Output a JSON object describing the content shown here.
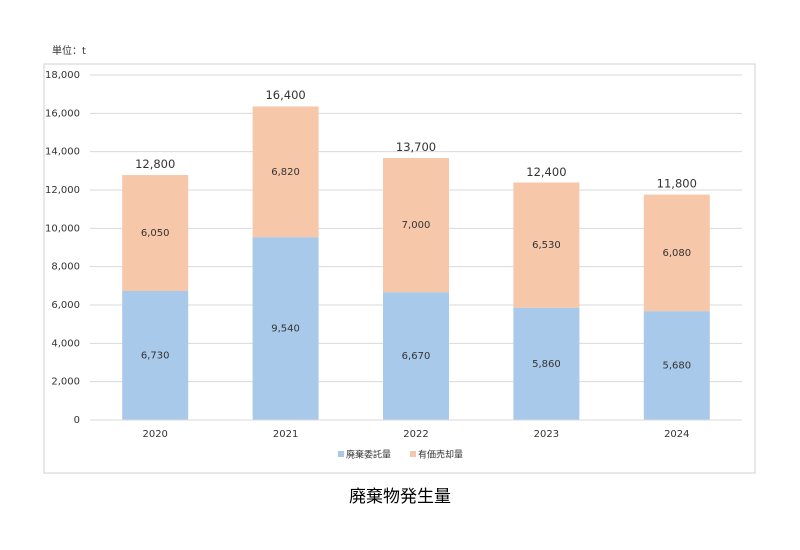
{
  "chart_data": {
    "type": "stacked_bar",
    "title": "廃棄物発生量",
    "unit_label": "単位：t",
    "categories": [
      "2020",
      "2021",
      "2022",
      "2023",
      "2024"
    ],
    "series": [
      {
        "name": "廃棄委託量",
        "color": "#a9c9ea",
        "values": [
          6730,
          9540,
          6670,
          5860,
          5680
        ],
        "value_labels": [
          "6,730",
          "9,540",
          "6,670",
          "5,860",
          "5,680"
        ]
      },
      {
        "name": "有価売却量",
        "color": "#f7c7aa",
        "values": [
          6050,
          6820,
          7000,
          6530,
          6080
        ],
        "value_labels": [
          "6,050",
          "6,820",
          "7,000",
          "6,530",
          "6,080"
        ]
      }
    ],
    "totals": [
      12800,
      16400,
      13700,
      12400,
      11800
    ],
    "total_labels": [
      "12,800",
      "16,400",
      "13,700",
      "12,400",
      "11,800"
    ],
    "ylim": [
      0,
      18000
    ],
    "yticks": [
      0,
      {
        "value": 2000,
        "label": "2,000"
      },
      {
        "value": 4000,
        "label": "4,000"
      },
      {
        "value": 6000,
        "label": "6,000"
      },
      {
        "value": 8000,
        "label": "8,000"
      },
      {
        "value": 10000,
        "label": "10,000"
      },
      {
        "value": 12000,
        "label": "12,000"
      },
      {
        "value": 14000,
        "label": "14,000"
      },
      {
        "value": 16000,
        "label": "16,000"
      },
      {
        "value": 18000,
        "label": "18,000"
      }
    ],
    "grid": true,
    "legend": "bottom"
  }
}
